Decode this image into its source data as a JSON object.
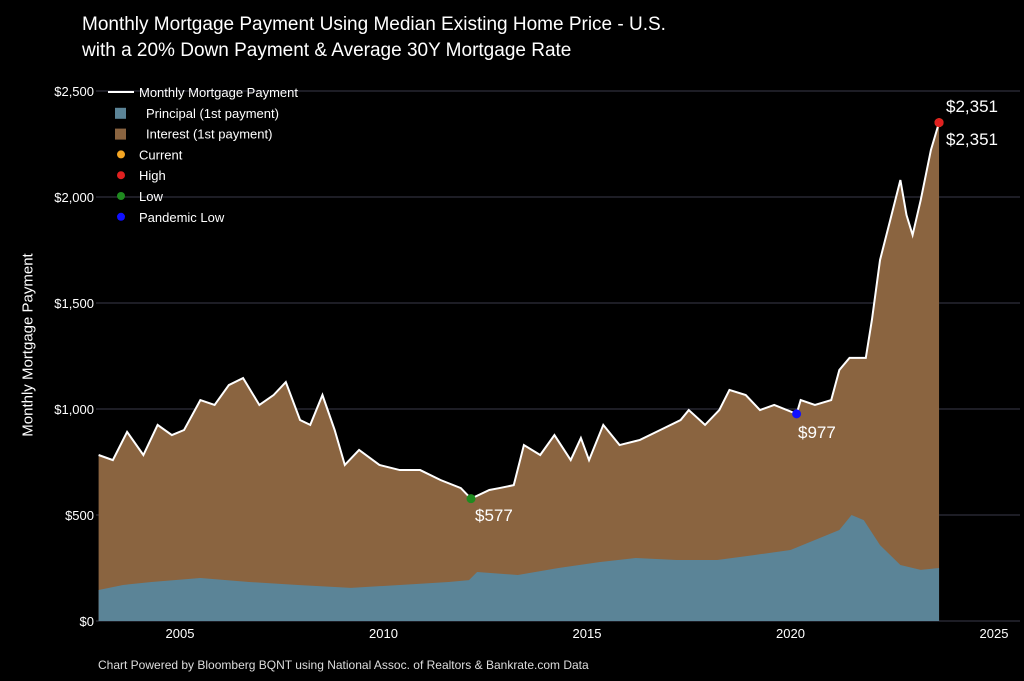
{
  "chart_data": {
    "type": "area",
    "title": "Monthly Mortgage Payment Using Median Existing Home Price - U.S.",
    "subtitle": "with a 20% Down Payment & Average 30Y Mortgage Rate",
    "ylabel": "Monthly Mortgage Payment",
    "xlabel": "",
    "footer": "Chart Powered by Bloomberg BQNT using National Assoc. of Realtors & Bankrate.com Data",
    "xlim": [
      2003,
      2026
    ],
    "ylim": [
      0,
      2500
    ],
    "x_ticks": [
      "2005",
      "2010",
      "2015",
      "2020",
      "2025"
    ],
    "y_ticks": [
      "$0",
      "$500",
      "$1,000",
      "$1,500",
      "$2,000",
      "$2,500"
    ],
    "grid": "horizontal",
    "legend_position": "top-left",
    "legend": [
      "Monthly Mortgage Payment",
      "Principal (1st payment)",
      "Interest (1st payment)",
      "Current",
      "High",
      "Low",
      "Pandemic Low"
    ],
    "colors": {
      "payment": "#ffffff",
      "principal": "#5b8497",
      "interest": "#8a6440",
      "current": "#f5a623",
      "high": "#e02020",
      "low": "#1f8a1f",
      "pandemic_low": "#1010ff",
      "grid": "#3a3a4a"
    },
    "series": [
      {
        "name": "Monthly Mortgage Payment",
        "x": [
          2003.0,
          2003.35,
          2003.7,
          2004.1,
          2004.45,
          2004.8,
          2005.1,
          2005.5,
          2005.85,
          2006.2,
          2006.55,
          2006.95,
          2007.3,
          2007.6,
          2007.95,
          2008.2,
          2008.5,
          2008.8,
          2009.05,
          2009.4,
          2009.9,
          2010.4,
          2010.9,
          2011.4,
          2011.9,
          2012.15,
          2012.6,
          2012.85,
          2013.2,
          2013.45,
          2013.85,
          2014.2,
          2014.6,
          2014.85,
          2015.05,
          2015.4,
          2015.8,
          2016.3,
          2016.8,
          2017.3,
          2017.5,
          2017.9,
          2018.25,
          2018.5,
          2018.9,
          2019.25,
          2019.6,
          2020.15,
          2020.25,
          2020.6,
          2021.0,
          2021.2,
          2021.45,
          2021.85,
          2022.0,
          2022.2,
          2022.45,
          2022.7,
          2022.85,
          2023.0,
          2023.2,
          2023.45,
          2023.65
        ],
        "values": [
          783,
          759,
          892,
          783,
          925,
          877,
          901,
          1042,
          1019,
          1113,
          1146,
          1019,
          1066,
          1127,
          948,
          925,
          1066,
          901,
          736,
          807,
          736,
          712,
          712,
          665,
          627,
          577,
          618,
          627,
          641,
          830,
          783,
          877,
          759,
          863,
          759,
          925,
          830,
          854,
          901,
          948,
          995,
          925,
          995,
          1090,
          1066,
          995,
          1019,
          977,
          1042,
          1019,
          1042,
          1184,
          1241,
          1241,
          1420,
          1703,
          1891,
          2080,
          1915,
          1821,
          1986,
          2222,
          2351
        ]
      },
      {
        "name": "Principal (1st payment)",
        "x": [
          2003.0,
          2003.6,
          2004.3,
          2005.5,
          2006.7,
          2007.9,
          2009.2,
          2010.4,
          2011.6,
          2012.1,
          2012.3,
          2013.3,
          2014.3,
          2015.3,
          2016.2,
          2017.2,
          2018.2,
          2019.1,
          2020.0,
          2020.6,
          2021.2,
          2021.5,
          2021.8,
          2022.2,
          2022.7,
          2023.2,
          2023.65
        ],
        "values": [
          146,
          170,
          184,
          203,
          184,
          170,
          156,
          170,
          184,
          193,
          231,
          217,
          250,
          278,
          297,
          288,
          288,
          311,
          335,
          382,
          429,
          500,
          476,
          358,
          264,
          241,
          250
        ]
      }
    ],
    "annotations": [
      {
        "label": "Current",
        "text": "$2,351",
        "x": 2023.65,
        "value": 2351
      },
      {
        "label": "High",
        "text": "$2,351",
        "x": 2023.65,
        "value": 2351
      },
      {
        "label": "Low",
        "text": "$577",
        "x": 2012.15,
        "value": 577
      },
      {
        "label": "Pandemic Low",
        "text": "$977",
        "x": 2020.15,
        "value": 977
      }
    ]
  }
}
